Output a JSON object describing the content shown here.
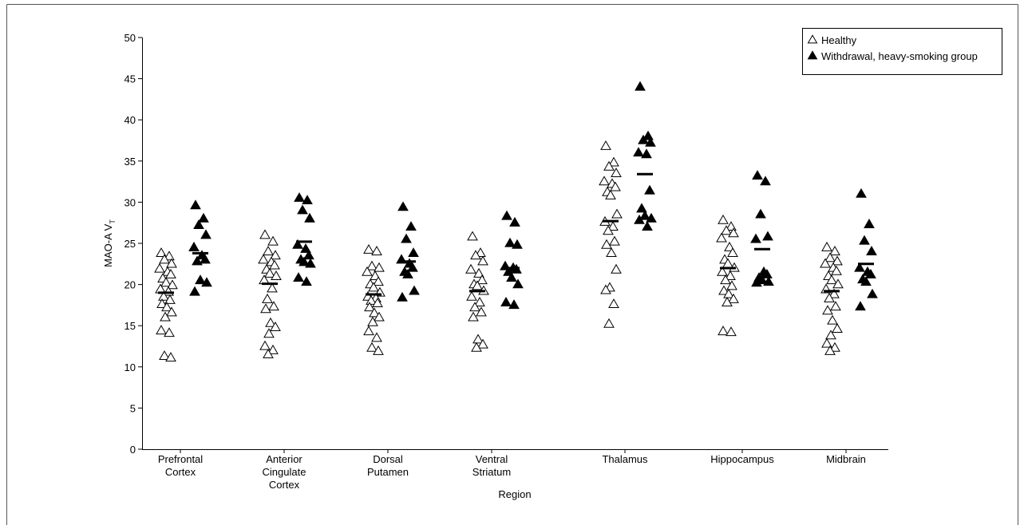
{
  "chart_data": {
    "type": "strip",
    "y_label": "MAO-A V",
    "y_label_subscript": "T",
    "x_label": "Region",
    "categories": [
      "Prefrontal Cortex",
      "Anterior Cingulate Cortex",
      "Dorsal Putamen",
      "Ventral Striatum",
      "Thalamus",
      "Hippocampus",
      "Midbrain"
    ],
    "ylim": [
      0,
      50
    ],
    "yticks": [
      0,
      5,
      10,
      15,
      20,
      25,
      30,
      35,
      40,
      45,
      50
    ],
    "legend": "upper right",
    "series": [
      {
        "name": "Healthy",
        "marker": "open-triangle",
        "color": "#000000",
        "values": [
          [
            23.8,
            23.4,
            23,
            22.5,
            21.9,
            21.5,
            21.2,
            20.7,
            20.2,
            19.9,
            19.4,
            19.1,
            18.5,
            18.1,
            17.6,
            17.2,
            16.6,
            16,
            14.4,
            14.1,
            11.3,
            11.1
          ],
          [
            26,
            25.2,
            24,
            23.5,
            23,
            22.7,
            22.3,
            21.8,
            21.3,
            21,
            20.5,
            19.5,
            18.2,
            17.3,
            17,
            15.3,
            14.8,
            14,
            12.5,
            12,
            11.5
          ],
          [
            24.2,
            24,
            22.2,
            22,
            21.5,
            21,
            20.3,
            20,
            19.6,
            19,
            18.5,
            18.3,
            18,
            17.7,
            17.2,
            16.5,
            16,
            15.4,
            14.3,
            13.5,
            12.3,
            11.9
          ],
          [
            25.8,
            23.8,
            23.5,
            22.8,
            21.8,
            21.3,
            20.5,
            20,
            19.8,
            19.2,
            18.5,
            17.8,
            17.2,
            16.6,
            16,
            13.3,
            12.7,
            12.3
          ],
          [
            36.8,
            34.8,
            34.3,
            33.5,
            32.5,
            32.2,
            31.8,
            31.2,
            30.8,
            28.5,
            27.6,
            27,
            26.5,
            25.2,
            24.8,
            23.8,
            21.8,
            19.6,
            19.3,
            17.6,
            15.2
          ],
          [
            27.8,
            27,
            26.5,
            26.2,
            25.6,
            24.5,
            23.8,
            23,
            22.5,
            22,
            21.5,
            21,
            20.5,
            19.8,
            19.2,
            18.8,
            18.2,
            17.8,
            14.3,
            14.2
          ],
          [
            24.5,
            24,
            23.2,
            22.8,
            22.5,
            22,
            21.6,
            21,
            20.5,
            20,
            19.4,
            18.8,
            18.3,
            17.3,
            16.8,
            15.6,
            14.6,
            13.8,
            12.8,
            12.3,
            11.9
          ]
        ],
        "means": [
          19,
          20.1,
          18.8,
          19.2,
          27.7,
          22,
          19.2
        ]
      },
      {
        "name": "Withdrawal, heavy-smoking group",
        "marker": "filled-triangle",
        "color": "#000000",
        "values": [
          [
            29.6,
            28,
            27.2,
            26,
            24.5,
            23.5,
            23,
            22.8,
            20.5,
            20.2,
            19.1
          ],
          [
            30.5,
            30.2,
            29,
            28,
            24.8,
            24.3,
            23.5,
            23,
            22.7,
            22.5,
            20.8,
            20.3
          ],
          [
            29.4,
            27,
            25.5,
            23.8,
            23,
            22.5,
            22,
            21.5,
            21.2,
            19.2,
            18.4
          ],
          [
            28.3,
            27.5,
            25,
            24.8,
            22.2,
            22,
            21.8,
            21.5,
            20.8,
            20,
            17.8,
            17.5
          ],
          [
            44,
            38,
            37.5,
            37.2,
            36,
            35.8,
            31.4,
            29.2,
            28.3,
            28,
            27.8,
            27
          ],
          [
            33.2,
            32.5,
            28.5,
            25.8,
            25.5,
            21.5,
            21.2,
            20.8,
            20.5,
            20.3,
            20.2
          ],
          [
            31,
            27.3,
            25.3,
            24,
            22,
            21.5,
            21.2,
            20.6,
            20.3,
            18.8,
            17.3
          ]
        ],
        "means": [
          23.8,
          25.2,
          22.8,
          22,
          33.4,
          24.3,
          22.5
        ]
      }
    ]
  }
}
